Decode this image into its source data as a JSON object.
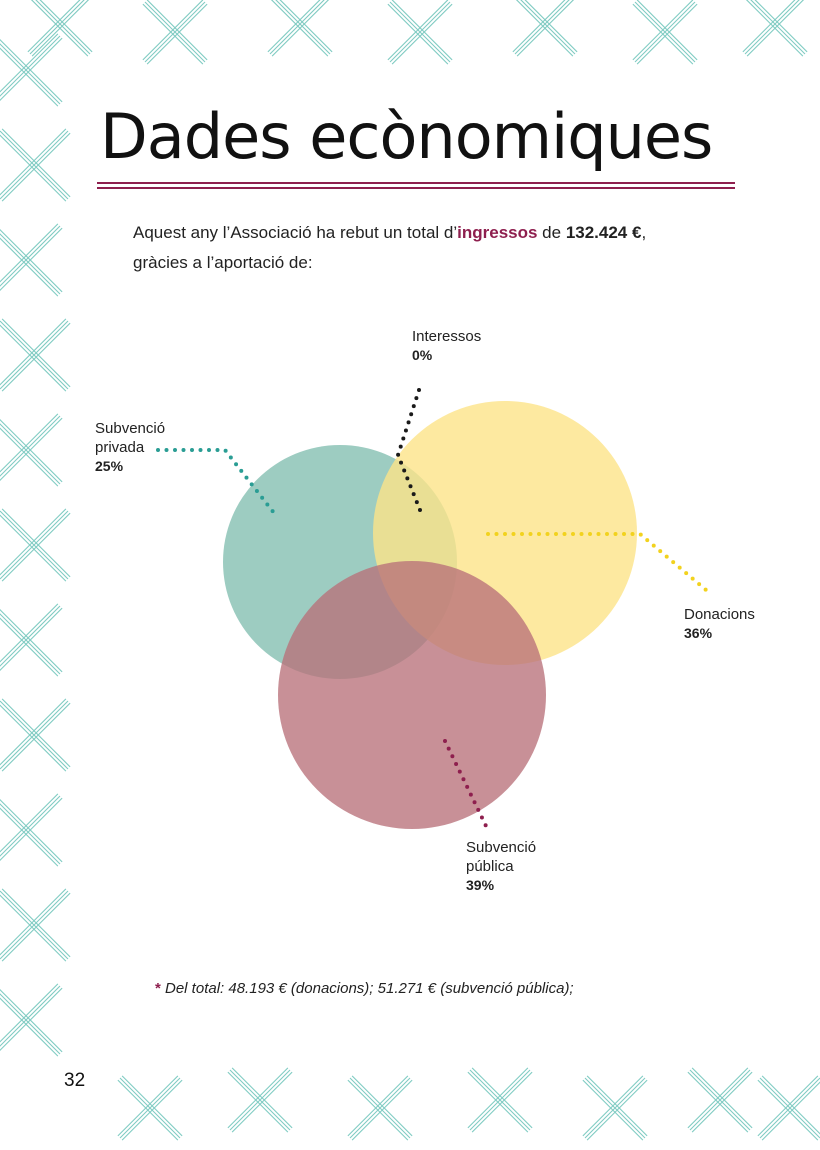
{
  "page": {
    "title": "Dades ecònomiques",
    "page_number": "32"
  },
  "intro": {
    "line1_a": "Aquest any l’Associació ha rebut un total d’",
    "highlight": "ingressos",
    "line1_b": " de ",
    "amount": "132.424 €",
    "line1_c": ",",
    "line2": "gràcies a l’aportació de:"
  },
  "chart_data": {
    "type": "venn",
    "segments": [
      {
        "name_line1": "Interessos",
        "name_line2": "",
        "percent": 0,
        "percent_label": "0%",
        "color": "#1a1a1a"
      },
      {
        "name_line1": "Subvenció",
        "name_line2": "privada",
        "percent": 25,
        "percent_label": "25%",
        "color": "#8fc5b8"
      },
      {
        "name_line1": "Donacions",
        "name_line2": "",
        "percent": 36,
        "percent_label": "36%",
        "color": "#fde488"
      },
      {
        "name_line1": "Subvenció",
        "name_line2": "pública",
        "percent": 39,
        "percent_label": "39%",
        "color": "#b9717a"
      }
    ],
    "leader_colors": {
      "privada": "#2a9d94",
      "donacions": "#f2d21e",
      "publica": "#8e1f4e",
      "interessos": "#1a1a1a"
    }
  },
  "footnote": {
    "star": "*",
    "text": " Del total: 48.193 € (donacions); 51.271 € (subvenció pública);"
  },
  "colors": {
    "accent": "#8e1f4e",
    "pattern": "#7fcbc2"
  }
}
